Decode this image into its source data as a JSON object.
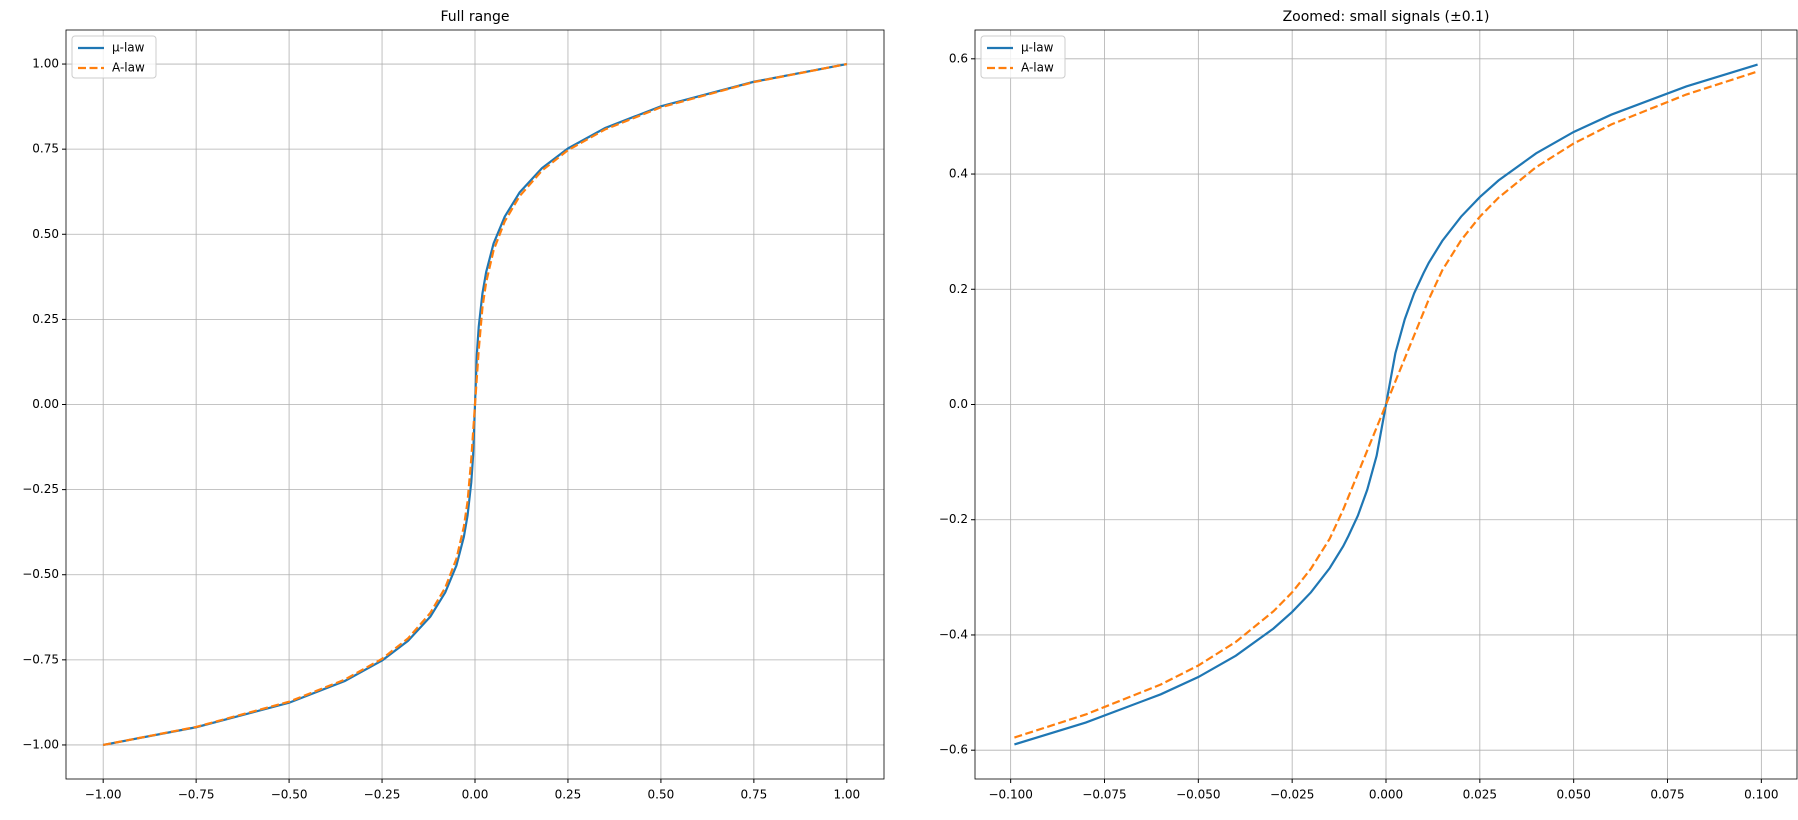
{
  "chart_data": [
    {
      "type": "line",
      "title": "Full range",
      "x": [
        -1,
        -0.75,
        -0.5,
        -0.35,
        -0.25,
        -0.18,
        -0.12,
        -0.08,
        -0.05,
        -0.03,
        -0.02,
        -0.01,
        -0.005,
        0,
        0.005,
        0.01,
        0.02,
        0.03,
        0.05,
        0.08,
        0.12,
        0.18,
        0.25,
        0.35,
        0.5,
        0.75,
        1
      ],
      "series": [
        {
          "name": "μ-law",
          "color": "#1f77b4",
          "linestyle": "solid",
          "values": [
            -1,
            -0.948,
            -0.876,
            -0.812,
            -0.752,
            -0.694,
            -0.623,
            -0.552,
            -0.473,
            -0.389,
            -0.326,
            -0.228,
            -0.148,
            0,
            0.148,
            0.228,
            0.326,
            0.389,
            0.473,
            0.552,
            0.623,
            0.694,
            0.752,
            0.812,
            0.876,
            0.948,
            1
          ]
        },
        {
          "name": "A-law",
          "color": "#ff7f0e",
          "linestyle": "dashed",
          "values": [
            -1,
            -0.947,
            -0.873,
            -0.808,
            -0.747,
            -0.687,
            -0.612,
            -0.538,
            -0.453,
            -0.359,
            -0.285,
            -0.16,
            -0.08,
            0,
            0.08,
            0.16,
            0.285,
            0.359,
            0.453,
            0.538,
            0.612,
            0.687,
            0.747,
            0.808,
            0.873,
            0.947,
            1
          ]
        }
      ],
      "xlim": [
        -1.1,
        1.1
      ],
      "ylim": [
        -1.1,
        1.1
      ],
      "xticks": [
        {
          "value": -1,
          "label": "−1.00"
        },
        {
          "value": -0.75,
          "label": "−0.75"
        },
        {
          "value": -0.5,
          "label": "−0.50"
        },
        {
          "value": -0.25,
          "label": "−0.25"
        },
        {
          "value": 0,
          "label": "0.00"
        },
        0.25,
        {
          "value": 0.5,
          "label": "0.50"
        },
        0.75,
        {
          "value": 1,
          "label": "1.00"
        }
      ],
      "yticks": [
        {
          "value": -1,
          "label": "−1.00"
        },
        {
          "value": -0.75,
          "label": "−0.75"
        },
        {
          "value": -0.5,
          "label": "−0.50"
        },
        {
          "value": -0.25,
          "label": "−0.25"
        },
        {
          "value": 0,
          "label": "0.00"
        },
        0.25,
        {
          "value": 0.5,
          "label": "0.50"
        },
        0.75,
        {
          "value": 1,
          "label": "1.00"
        }
      ],
      "grid": true,
      "legend": "upper left"
    },
    {
      "type": "line",
      "title": "Zoomed: small signals (±0.1)",
      "x": [
        -0.099,
        -0.08,
        -0.06,
        -0.05,
        -0.04,
        -0.03,
        -0.025,
        -0.02,
        -0.015,
        -0.0114,
        -0.01,
        -0.0075,
        -0.005,
        -0.0025,
        0,
        0.0025,
        0.005,
        0.0075,
        0.01,
        0.0114,
        0.015,
        0.02,
        0.025,
        0.03,
        0.04,
        0.05,
        0.06,
        0.08,
        0.099
      ],
      "series": [
        {
          "name": "μ-law",
          "color": "#1f77b4",
          "linestyle": "solid",
          "values": [
            -0.59,
            -0.552,
            -0.503,
            -0.473,
            -0.436,
            -0.389,
            -0.36,
            -0.326,
            -0.284,
            -0.246,
            -0.228,
            -0.193,
            -0.148,
            -0.089,
            0,
            0.089,
            0.148,
            0.193,
            0.228,
            0.246,
            0.284,
            0.326,
            0.36,
            0.389,
            0.436,
            0.473,
            0.503,
            0.552,
            0.59
          ]
        },
        {
          "name": "A-law",
          "color": "#ff7f0e",
          "linestyle": "dashed",
          "values": [
            -0.578,
            -0.538,
            -0.486,
            -0.453,
            -0.412,
            -0.359,
            -0.326,
            -0.285,
            -0.233,
            -0.1825,
            -0.16,
            -0.12,
            -0.08,
            -0.04,
            0,
            0.04,
            0.08,
            0.12,
            0.16,
            0.1825,
            0.233,
            0.285,
            0.326,
            0.359,
            0.412,
            0.453,
            0.486,
            0.538,
            0.578
          ]
        }
      ],
      "xlim": [
        -0.1095,
        0.1095
      ],
      "ylim": [
        -0.65,
        0.65
      ],
      "xticks": [
        {
          "value": -0.1,
          "label": "−0.100"
        },
        {
          "value": -0.075,
          "label": "−0.075"
        },
        {
          "value": -0.05,
          "label": "−0.050"
        },
        {
          "value": -0.025,
          "label": "−0.025"
        },
        {
          "value": 0,
          "label": "0.000"
        },
        0.025,
        {
          "value": 0.05,
          "label": "0.050"
        },
        0.075,
        {
          "value": 0.1,
          "label": "0.100"
        }
      ],
      "yticks": [
        {
          "value": -0.6,
          "label": "−0.6"
        },
        {
          "value": -0.4,
          "label": "−0.4"
        },
        {
          "value": -0.2,
          "label": "−0.2"
        },
        {
          "value": 0,
          "label": "0.0"
        },
        0.2,
        0.4,
        0.6
      ],
      "grid": true,
      "legend": "upper left"
    }
  ]
}
